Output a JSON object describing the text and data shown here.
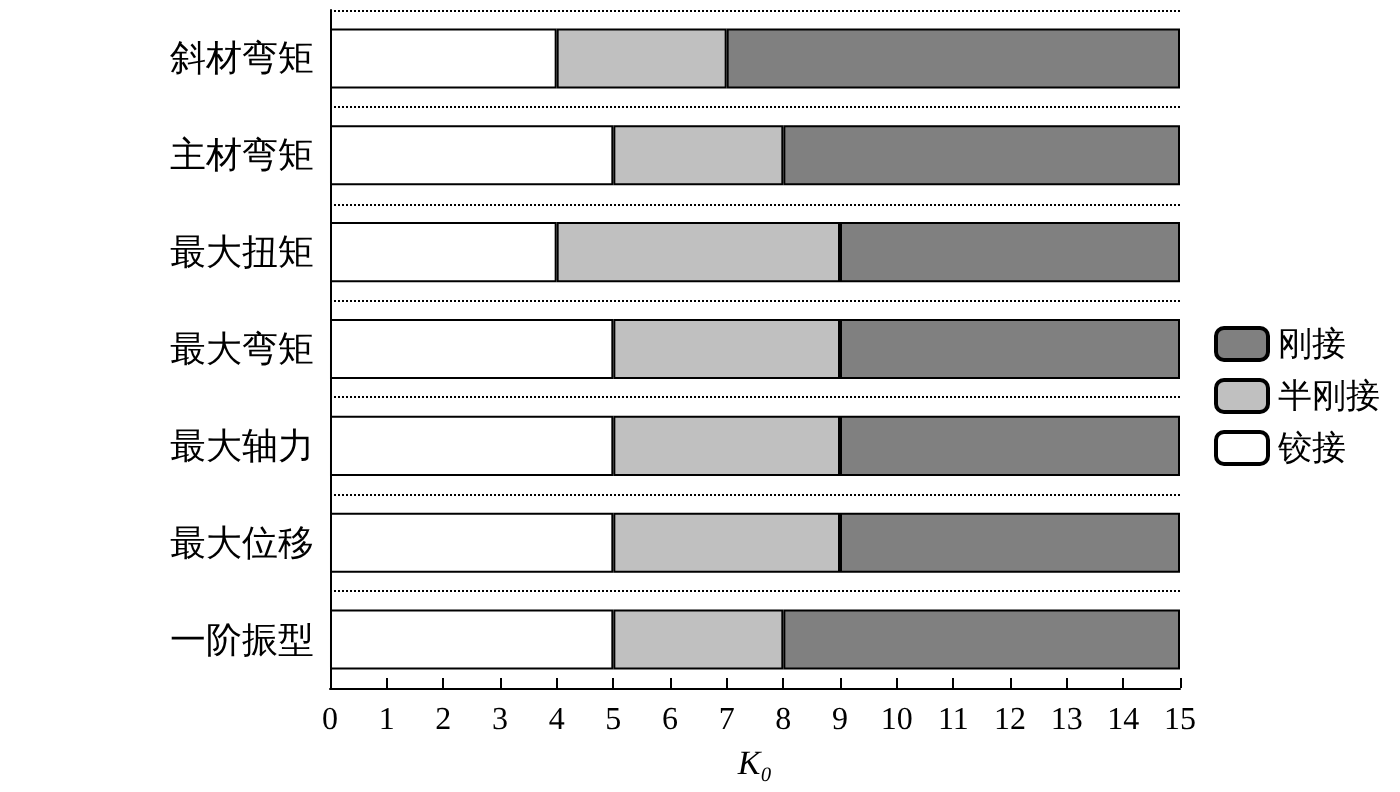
{
  "chart_data": {
    "type": "bar",
    "orientation": "horizontal",
    "stacked": true,
    "categories": [
      "斜材弯矩",
      "主材弯矩",
      "最大扭矩",
      "最大弯矩",
      "最大轴力",
      "最大位移",
      "一阶振型"
    ],
    "series": [
      {
        "name": "铰接",
        "color": "#ffffff",
        "values": [
          4,
          5,
          4,
          5,
          5,
          5,
          5
        ]
      },
      {
        "name": "半刚接",
        "color": "#c0c0c0",
        "values": [
          3,
          3,
          5,
          4,
          4,
          4,
          3
        ]
      },
      {
        "name": "刚接",
        "color": "#808080",
        "values": [
          8,
          7,
          6,
          6,
          6,
          6,
          7
        ]
      }
    ],
    "xlabel": "K₀",
    "xlim": [
      0,
      15
    ],
    "xticks": [
      0,
      1,
      2,
      3,
      4,
      5,
      6,
      7,
      8,
      9,
      10,
      11,
      12,
      13,
      14,
      15
    ],
    "grid": "y",
    "line_style": "dotted",
    "legend": "right"
  }
}
